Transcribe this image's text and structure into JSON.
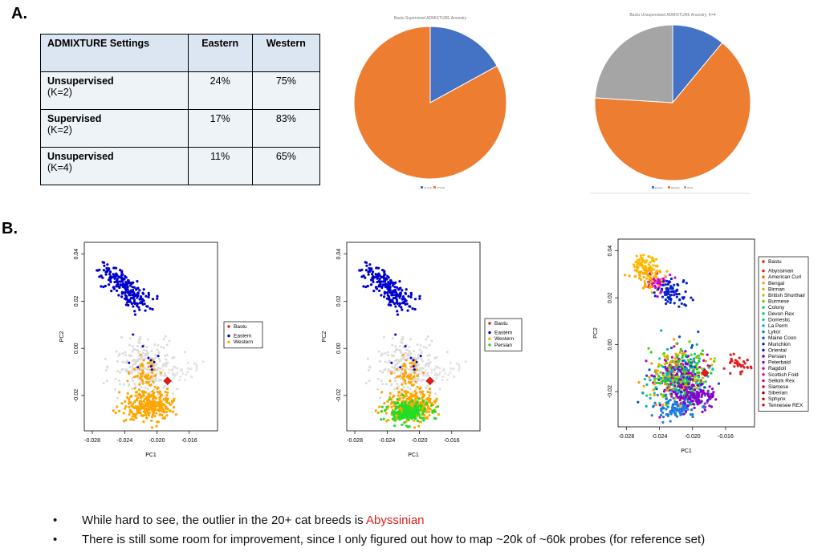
{
  "labels": {
    "a": "A.",
    "b": "B."
  },
  "table": {
    "headers": [
      "ADMIXTURE Settings",
      "Eastern",
      "Western"
    ],
    "rows": [
      {
        "setting": "Unsupervised",
        "k": "(K=2)",
        "eastern": "24%",
        "western": "75%"
      },
      {
        "setting": "Supervised",
        "k": "(K=2)",
        "eastern": "17%",
        "western": "83%"
      },
      {
        "setting": "Unsupervised",
        "k": "(K=4)",
        "eastern": "11%",
        "western": "65%"
      }
    ]
  },
  "colors": {
    "eastern": "#4472c4",
    "western": "#ed7d31",
    "other": "#a5a5a5",
    "bastu": "#e41a1c",
    "pc_eastern": "#0000cc",
    "pc_western": "#ffa500",
    "pc_persian": "#22dd22"
  },
  "bullets": [
    {
      "text": "While hard to see, the outlier in the 20+ cat breeds is ",
      "highlight": "Abyssinian"
    },
    {
      "text": "There is still some room for improvement, since I only figured out how to map ~20k of ~60k probes (for reference set)",
      "highlight": ""
    }
  ],
  "chart_data": [
    {
      "type": "pie",
      "title": "Bastu Supervised ADMIXTURE Ancestry",
      "labels": [
        "V1 (K1)",
        "V2 (K2)"
      ],
      "values": [
        17,
        83
      ]
    },
    {
      "type": "pie",
      "title": "Bastu Unsupervised ADMIXTURE Ancestry, K=4",
      "labels": [
        "Eastern",
        "Western",
        "Other"
      ],
      "values": [
        11,
        65,
        24
      ]
    },
    {
      "type": "scatter",
      "xlabel": "PC1",
      "ylabel": "PC2",
      "xticks": [
        "-0.028",
        "-0.024",
        "-0.020",
        "-0.016"
      ],
      "yticks": [
        "-0.02",
        "0.00",
        "0.02",
        "0.04"
      ],
      "xlim": [
        -0.029,
        -0.0125
      ],
      "ylim": [
        -0.035,
        0.045
      ],
      "legend": [
        "Bastu",
        "Eastern",
        "Western"
      ]
    },
    {
      "type": "scatter",
      "xlabel": "PC1",
      "ylabel": "PC2",
      "xticks": [
        "-0.028",
        "-0.024",
        "-0.020",
        "-0.016"
      ],
      "yticks": [
        "-0.02",
        "0.00",
        "0.02",
        "0.04"
      ],
      "xlim": [
        -0.029,
        -0.0125
      ],
      "ylim": [
        -0.035,
        0.045
      ],
      "legend": [
        "Bastu",
        "Eastern",
        "Western",
        "Persian"
      ]
    },
    {
      "type": "scatter",
      "xlabel": "PC1",
      "ylabel": "PC2",
      "xticks": [
        "-0.028",
        "-0.024",
        "-0.020",
        "-0.016"
      ],
      "yticks": [
        "-0.02",
        "0.00",
        "0.02",
        "0.04"
      ],
      "xlim": [
        -0.029,
        -0.0125
      ],
      "ylim": [
        -0.035,
        0.045
      ],
      "legend": [
        "Bastu",
        "Abyssinian",
        "American Curl",
        "Bengal",
        "Birman",
        "British Shorthair",
        "Burmese",
        "Colony",
        "Devon Rex",
        "Domestic",
        "La Perm",
        "Lykoi",
        "Maine Coon",
        "Munchkin",
        "Oriental",
        "Persian",
        "Peterbald",
        "Ragdoll",
        "Scottish Fold",
        "Selkirk Rex",
        "Siamese",
        "Siberian",
        "Sphynx",
        "Tennesee REX"
      ],
      "legend_colors": [
        "#e41a1c",
        "#e41a1c",
        "#e65c00",
        "#ff9900",
        "#ccbb00",
        "#aacc00",
        "#66cc00",
        "#22cc22",
        "#00cc66",
        "#00ccaa",
        "#00aacc",
        "#0088cc",
        "#0055cc",
        "#0022cc",
        "#2200cc",
        "#5500cc",
        "#8800cc",
        "#bb00cc",
        "#cc00aa",
        "#cc0077",
        "#cc0044",
        "#990000",
        "#cc0000",
        "#dd0000"
      ]
    }
  ]
}
